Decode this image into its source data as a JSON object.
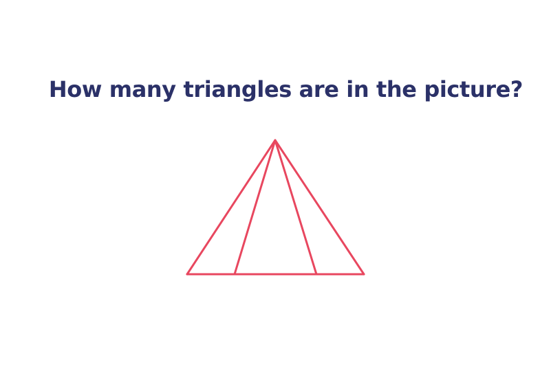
{
  "question": {
    "text": "How many triangles are in the picture?",
    "color": "#2b3168"
  },
  "figure": {
    "shape": "triangle-icon",
    "line_color": "#e8475f",
    "lines_from_apex": 4,
    "base_segments": 3
  }
}
